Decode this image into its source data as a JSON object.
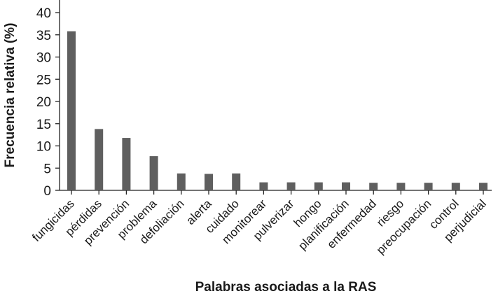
{
  "chart_data": {
    "type": "bar",
    "title": "",
    "xlabel": "Palabras asociadas a la RAS",
    "ylabel": "Frecuencia relativa (%)",
    "ylim": [
      0,
      40
    ],
    "yticks": [
      0,
      5,
      10,
      15,
      20,
      25,
      30,
      35,
      40
    ],
    "grid": false,
    "bar_color": "#5f5f5f",
    "categories": [
      "fungicidas",
      "pérdidas",
      "prevención",
      "problema",
      "defoliación",
      "alerta",
      "cuidado",
      "monitorear",
      "pulverizar",
      "hongo",
      "planificación",
      "enfermedad",
      "riesgo",
      "preocupación",
      "control",
      "perjudicial"
    ],
    "values": [
      35.8,
      13.8,
      11.8,
      7.7,
      3.8,
      3.7,
      3.8,
      1.8,
      1.8,
      1.8,
      1.8,
      1.7,
      1.7,
      1.7,
      1.7,
      1.7
    ]
  }
}
